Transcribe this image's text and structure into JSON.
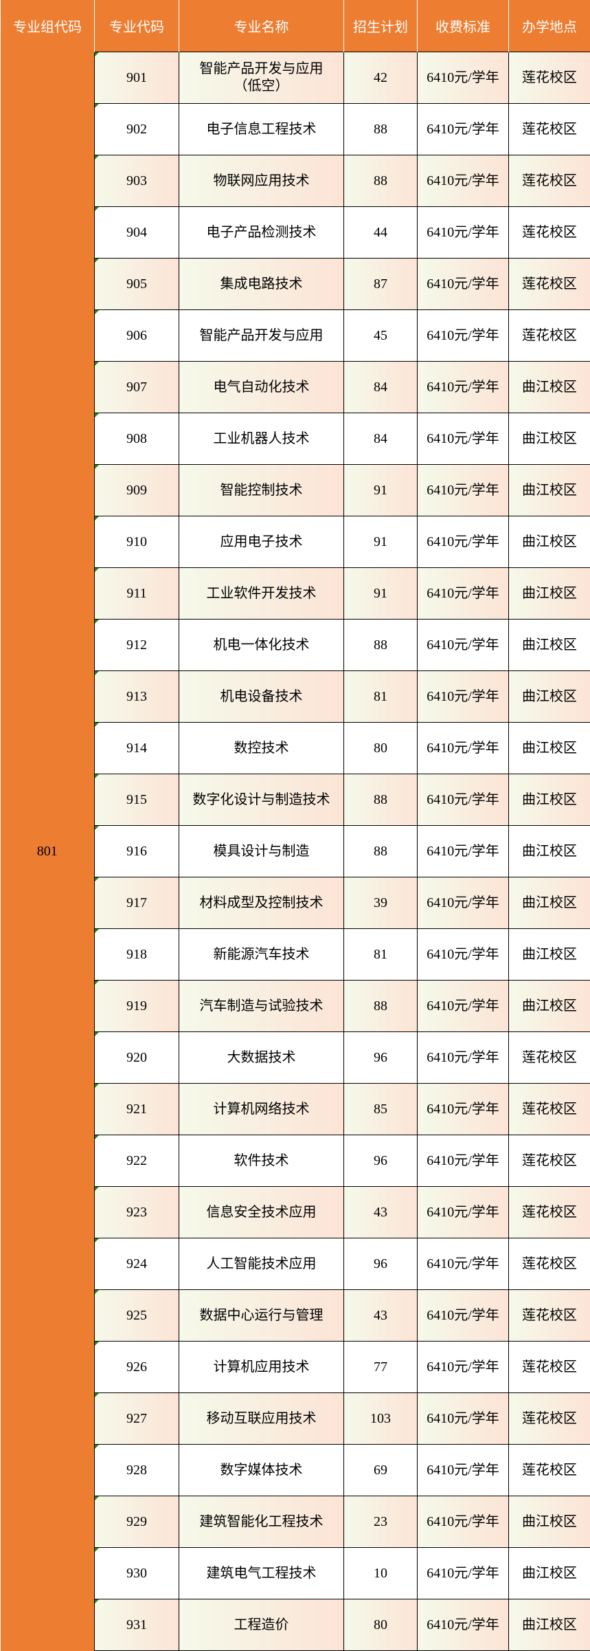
{
  "colors": {
    "header": "#ED7D31",
    "shade_start": "#F5F9EA",
    "shade_end": "#FCE4D6"
  },
  "headers": [
    "专业组代码",
    "专业代码",
    "专业名称",
    "招生计划",
    "收费标准",
    "办学地点"
  ],
  "group_code": "801",
  "rows": [
    {
      "code": "901",
      "name": "智能产品开发与应用\n（低空）",
      "plan": "42",
      "fee": "6410元/学年",
      "site": "莲花校区"
    },
    {
      "code": "902",
      "name": "电子信息工程技术",
      "plan": "88",
      "fee": "6410元/学年",
      "site": "莲花校区"
    },
    {
      "code": "903",
      "name": "物联网应用技术",
      "plan": "88",
      "fee": "6410元/学年",
      "site": "莲花校区"
    },
    {
      "code": "904",
      "name": "电子产品检测技术",
      "plan": "44",
      "fee": "6410元/学年",
      "site": "莲花校区"
    },
    {
      "code": "905",
      "name": "集成电路技术",
      "plan": "87",
      "fee": "6410元/学年",
      "site": "莲花校区"
    },
    {
      "code": "906",
      "name": "智能产品开发与应用",
      "plan": "45",
      "fee": "6410元/学年",
      "site": "莲花校区"
    },
    {
      "code": "907",
      "name": "电气自动化技术",
      "plan": "84",
      "fee": "6410元/学年",
      "site": "曲江校区"
    },
    {
      "code": "908",
      "name": "工业机器人技术",
      "plan": "84",
      "fee": "6410元/学年",
      "site": "曲江校区"
    },
    {
      "code": "909",
      "name": "智能控制技术",
      "plan": "91",
      "fee": "6410元/学年",
      "site": "曲江校区"
    },
    {
      "code": "910",
      "name": "应用电子技术",
      "plan": "91",
      "fee": "6410元/学年",
      "site": "曲江校区"
    },
    {
      "code": "911",
      "name": "工业软件开发技术",
      "plan": "91",
      "fee": "6410元/学年",
      "site": "曲江校区"
    },
    {
      "code": "912",
      "name": "机电一体化技术",
      "plan": "88",
      "fee": "6410元/学年",
      "site": "曲江校区"
    },
    {
      "code": "913",
      "name": "机电设备技术",
      "plan": "81",
      "fee": "6410元/学年",
      "site": "曲江校区"
    },
    {
      "code": "914",
      "name": "数控技术",
      "plan": "80",
      "fee": "6410元/学年",
      "site": "曲江校区"
    },
    {
      "code": "915",
      "name": "数字化设计与制造技术",
      "plan": "88",
      "fee": "6410元/学年",
      "site": "曲江校区"
    },
    {
      "code": "916",
      "name": "模具设计与制造",
      "plan": "88",
      "fee": "6410元/学年",
      "site": "曲江校区"
    },
    {
      "code": "917",
      "name": "材料成型及控制技术",
      "plan": "39",
      "fee": "6410元/学年",
      "site": "曲江校区"
    },
    {
      "code": "918",
      "name": "新能源汽车技术",
      "plan": "81",
      "fee": "6410元/学年",
      "site": "曲江校区"
    },
    {
      "code": "919",
      "name": "汽车制造与试验技术",
      "plan": "88",
      "fee": "6410元/学年",
      "site": "曲江校区"
    },
    {
      "code": "920",
      "name": "大数据技术",
      "plan": "96",
      "fee": "6410元/学年",
      "site": "莲花校区"
    },
    {
      "code": "921",
      "name": "计算机网络技术",
      "plan": "85",
      "fee": "6410元/学年",
      "site": "莲花校区"
    },
    {
      "code": "922",
      "name": "软件技术",
      "plan": "96",
      "fee": "6410元/学年",
      "site": "莲花校区"
    },
    {
      "code": "923",
      "name": "信息安全技术应用",
      "plan": "43",
      "fee": "6410元/学年",
      "site": "莲花校区"
    },
    {
      "code": "924",
      "name": "人工智能技术应用",
      "plan": "96",
      "fee": "6410元/学年",
      "site": "莲花校区"
    },
    {
      "code": "925",
      "name": "数据中心运行与管理",
      "plan": "43",
      "fee": "6410元/学年",
      "site": "莲花校区"
    },
    {
      "code": "926",
      "name": "计算机应用技术",
      "plan": "77",
      "fee": "6410元/学年",
      "site": "莲花校区"
    },
    {
      "code": "927",
      "name": "移动互联应用技术",
      "plan": "103",
      "fee": "6410元/学年",
      "site": "莲花校区"
    },
    {
      "code": "928",
      "name": "数字媒体技术",
      "plan": "69",
      "fee": "6410元/学年",
      "site": "莲花校区"
    },
    {
      "code": "929",
      "name": "建筑智能化工程技术",
      "plan": "23",
      "fee": "6410元/学年",
      "site": "曲江校区"
    },
    {
      "code": "930",
      "name": "建筑电气工程技术",
      "plan": "10",
      "fee": "6410元/学年",
      "site": "曲江校区"
    },
    {
      "code": "931",
      "name": "工程造价",
      "plan": "80",
      "fee": "6410元/学年",
      "site": "曲江校区"
    }
  ]
}
